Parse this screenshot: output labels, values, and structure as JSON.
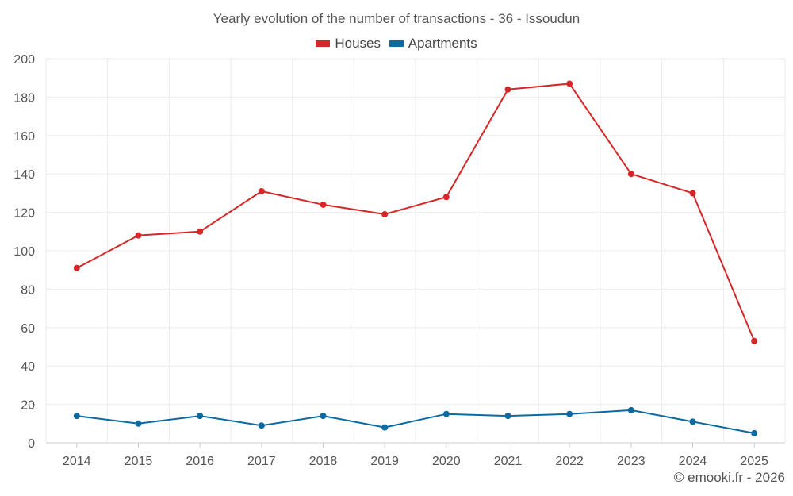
{
  "chart_data": {
    "type": "line",
    "title": "Yearly evolution of the number of transactions - 36 - Issoudun",
    "categories": [
      "2014",
      "2015",
      "2016",
      "2017",
      "2018",
      "2019",
      "2020",
      "2021",
      "2022",
      "2023",
      "2024",
      "2025"
    ],
    "series": [
      {
        "name": "Houses",
        "color": "#d62728",
        "values": [
          91,
          108,
          110,
          131,
          124,
          119,
          128,
          184,
          187,
          140,
          130,
          53
        ]
      },
      {
        "name": "Apartments",
        "color": "#0a6aa1",
        "values": [
          14,
          10,
          14,
          9,
          14,
          8,
          15,
          14,
          15,
          17,
          11,
          5
        ]
      }
    ],
    "yticks": [
      0,
      20,
      40,
      60,
      80,
      100,
      120,
      140,
      160,
      180,
      200
    ],
    "ylim": [
      0,
      200
    ],
    "xlabel": "",
    "ylabel": "",
    "grid": true,
    "legend_position": "top-center"
  },
  "credit": "© emooki.fr - 2026"
}
